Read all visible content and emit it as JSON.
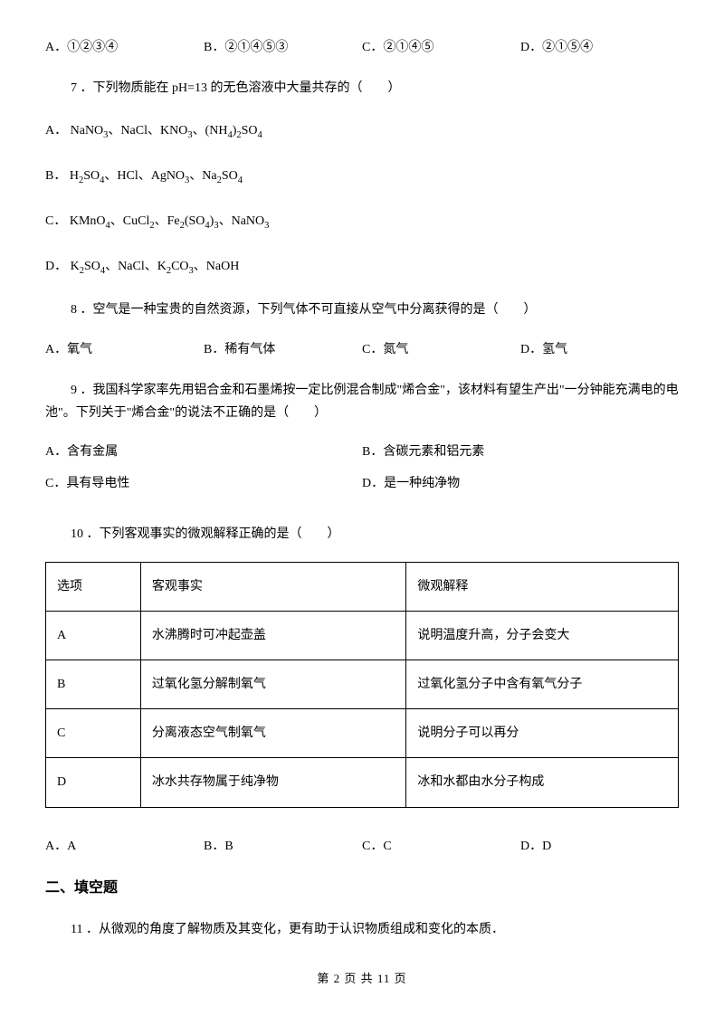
{
  "q6_options": {
    "A": "A．①②③④",
    "B": "B．②①④⑤③",
    "C": "C．②①④⑤",
    "D": "D．②①⑤④"
  },
  "q7": {
    "stem": "7 ．下列物质能在 pH=13 的无色溶液中大量共存的（　　）",
    "A_label": "A．",
    "A_chem": "NaNO₃、NaCl、KNO₃、(NH₄)₂SO₄",
    "B_label": "B．",
    "B_chem": "H₂SO₄、HCl、AgNO₃、Na₂SO₄",
    "C_label": "C．",
    "C_chem": "KMnO₄、CuCl₂、Fe₂(SO₄)₃、NaNO₃",
    "D_label": "D．",
    "D_chem": "K₂SO₄、NaCl、K₂CO₃、NaOH"
  },
  "q8": {
    "stem": "8 ．空气是一种宝贵的自然资源，下列气体不可直接从空气中分离获得的是（　　）",
    "A": "A．氧气",
    "B": "B．稀有气体",
    "C": "C．氮气",
    "D": "D．氢气"
  },
  "q9": {
    "stem": "9 ．我国科学家率先用铝合金和石墨烯按一定比例混合制成\"烯合金\"，该材料有望生产出\"一分钟能充满电的电池\"。下列关于\"烯合金\"的说法不正确的是（　　）",
    "A": "A．含有金属",
    "B": "B．含碳元素和铝元素",
    "C": "C．具有导电性",
    "D": "D．是一种纯净物"
  },
  "q10": {
    "stem": "10 ．下列客观事实的微观解释正确的是（　　）",
    "headers": {
      "col1": "选项",
      "col2": "客观事实",
      "col3": "微观解释"
    },
    "rows": [
      {
        "opt": "A",
        "fact": "水沸腾时可冲起壶盖",
        "expl": "说明温度升高，分子会变大"
      },
      {
        "opt": "B",
        "fact": "过氧化氢分解制氧气",
        "expl": "过氧化氢分子中含有氧气分子"
      },
      {
        "opt": "C",
        "fact": "分离液态空气制氧气",
        "expl": "说明分子可以再分"
      },
      {
        "opt": "D",
        "fact": "冰水共存物属于纯净物",
        "expl": "冰和水都由水分子构成"
      }
    ],
    "answers": {
      "A": "A．A",
      "B": "B．B",
      "C": "C．C",
      "D": "D．D"
    }
  },
  "section2": "二、填空题",
  "q11": {
    "stem": "11 ．从微观的角度了解物质及其变化，更有助于认识物质组成和变化的本质．"
  },
  "footer": "第 2 页 共 11 页"
}
